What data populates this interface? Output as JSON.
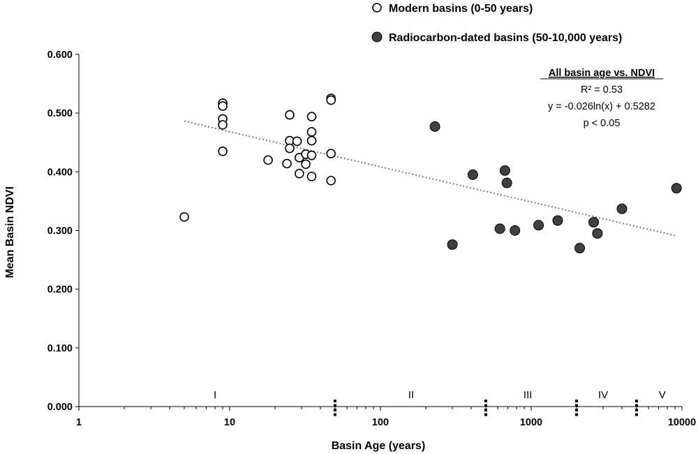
{
  "chart_data": {
    "type": "scatter",
    "title": "",
    "xlabel": "Basin Age (years)",
    "ylabel": "Mean Basin NDVI",
    "xscale": "log",
    "xlim": [
      1,
      10000
    ],
    "ylim": [
      0,
      0.6
    ],
    "x_ticks": [
      1,
      10,
      100,
      1000,
      10000
    ],
    "x_tick_labels": [
      "1",
      "10",
      "100",
      "1000",
      "10000"
    ],
    "y_ticks": [
      0,
      0.1,
      0.2,
      0.3,
      0.4,
      0.5,
      0.6
    ],
    "y_tick_labels": [
      "0.000",
      "0.100",
      "0.200",
      "0.300",
      "0.400",
      "0.500",
      "0.600"
    ],
    "legend_position": "top-right",
    "series": [
      {
        "name": "Modern basins (0-50 years)",
        "marker": "open-circle",
        "color": "#000000",
        "points": [
          [
            5,
            0.323
          ],
          [
            9,
            0.517
          ],
          [
            9,
            0.512
          ],
          [
            9,
            0.49
          ],
          [
            9,
            0.48
          ],
          [
            9,
            0.435
          ],
          [
            18,
            0.42
          ],
          [
            24,
            0.414
          ],
          [
            25,
            0.497
          ],
          [
            25,
            0.453
          ],
          [
            25,
            0.44
          ],
          [
            28,
            0.452
          ],
          [
            29,
            0.424
          ],
          [
            29,
            0.397
          ],
          [
            32,
            0.43
          ],
          [
            32,
            0.413
          ],
          [
            35,
            0.494
          ],
          [
            35,
            0.468
          ],
          [
            35,
            0.453
          ],
          [
            35,
            0.428
          ],
          [
            35,
            0.392
          ],
          [
            47,
            0.525
          ],
          [
            47,
            0.522
          ],
          [
            47,
            0.431
          ],
          [
            47,
            0.385
          ]
        ]
      },
      {
        "name": "Radiocarbon-dated basins (50-10,000 years)",
        "marker": "filled-circle",
        "color": "#404040",
        "points": [
          [
            230,
            0.477
          ],
          [
            300,
            0.276
          ],
          [
            410,
            0.395
          ],
          [
            620,
            0.303
          ],
          [
            670,
            0.402
          ],
          [
            690,
            0.381
          ],
          [
            780,
            0.3
          ],
          [
            1120,
            0.309
          ],
          [
            1500,
            0.317
          ],
          [
            2100,
            0.27
          ],
          [
            2600,
            0.314
          ],
          [
            2750,
            0.295
          ],
          [
            4000,
            0.337
          ],
          [
            9200,
            0.372
          ]
        ]
      }
    ],
    "trendline": {
      "type": "logarithmic",
      "a": -0.026,
      "b": 0.5282,
      "x_range": [
        5,
        9200
      ],
      "style": "dotted",
      "color": "#808080"
    },
    "annotation": {
      "title": "All basin age vs. NDVI",
      "lines": [
        "R² = 0.53",
        "y = -0.026ln(x) + 0.5282",
        "p < 0.05"
      ]
    },
    "zones": [
      {
        "label": "I",
        "center": 8
      },
      {
        "label": "II",
        "center": 160
      },
      {
        "label": "III",
        "center": 950
      },
      {
        "label": "IV",
        "center": 3000
      },
      {
        "label": "V",
        "center": 7400
      }
    ],
    "zone_boundaries": [
      50,
      500,
      2000,
      5000
    ]
  }
}
